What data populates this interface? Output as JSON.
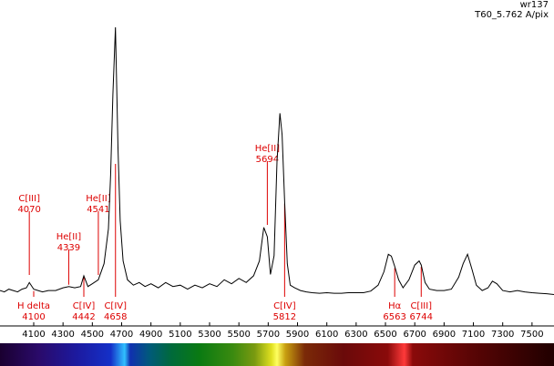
{
  "header": {
    "object": "wr137",
    "setup": "T60_5.762 A/pix"
  },
  "colors": {
    "spectrum_line": "#000000",
    "annotation": "#dd0000",
    "axis": "#000000",
    "background": "#ffffff"
  },
  "chart_data": {
    "type": "line",
    "title": "",
    "xlabel": "",
    "ylabel": "",
    "xlim": [
      3870,
      7650
    ],
    "ylim": [
      0,
      1
    ],
    "grid": false,
    "x_ticks": [
      4100,
      4300,
      4500,
      4700,
      4900,
      5100,
      5300,
      5500,
      5700,
      5900,
      6100,
      6300,
      6500,
      6700,
      6900,
      7100,
      7300,
      7500
    ],
    "series": [
      {
        "x": [
          3870,
          3900,
          3930,
          3960,
          3990,
          4020,
          4050,
          4070,
          4100,
          4130,
          4160,
          4200,
          4250,
          4300,
          4340,
          4380,
          4420,
          4442,
          4470,
          4500,
          4541,
          4580,
          4610,
          4625,
          4640,
          4658,
          4675,
          4690,
          4710,
          4740,
          4780,
          4820,
          4860,
          4900,
          4950,
          5000,
          5050,
          5100,
          5150,
          5200,
          5250,
          5300,
          5350,
          5400,
          5450,
          5500,
          5550,
          5600,
          5640,
          5670,
          5694,
          5715,
          5740,
          5760,
          5780,
          5795,
          5812,
          5830,
          5850,
          5880,
          5920,
          5960,
          6000,
          6050,
          6100,
          6150,
          6200,
          6250,
          6300,
          6350,
          6400,
          6450,
          6490,
          6520,
          6540,
          6563,
          6590,
          6620,
          6660,
          6700,
          6730,
          6744,
          6770,
          6800,
          6850,
          6900,
          6950,
          7000,
          7030,
          7060,
          7090,
          7120,
          7160,
          7200,
          7230,
          7260,
          7300,
          7350,
          7400,
          7450,
          7500,
          7550,
          7600,
          7650
        ],
        "y": [
          0.02,
          0.015,
          0.025,
          0.02,
          0.015,
          0.025,
          0.03,
          0.05,
          0.025,
          0.02,
          0.015,
          0.02,
          0.02,
          0.03,
          0.035,
          0.03,
          0.035,
          0.075,
          0.035,
          0.045,
          0.06,
          0.12,
          0.25,
          0.45,
          0.75,
          1.0,
          0.55,
          0.28,
          0.13,
          0.06,
          0.04,
          0.05,
          0.035,
          0.045,
          0.03,
          0.05,
          0.035,
          0.04,
          0.025,
          0.04,
          0.03,
          0.045,
          0.035,
          0.06,
          0.045,
          0.065,
          0.05,
          0.075,
          0.13,
          0.255,
          0.22,
          0.08,
          0.15,
          0.5,
          0.68,
          0.6,
          0.35,
          0.12,
          0.04,
          0.03,
          0.02,
          0.015,
          0.012,
          0.01,
          0.012,
          0.01,
          0.01,
          0.012,
          0.012,
          0.012,
          0.018,
          0.04,
          0.09,
          0.155,
          0.148,
          0.11,
          0.06,
          0.03,
          0.06,
          0.115,
          0.13,
          0.115,
          0.05,
          0.025,
          0.02,
          0.02,
          0.025,
          0.07,
          0.12,
          0.155,
          0.1,
          0.04,
          0.02,
          0.03,
          0.055,
          0.045,
          0.02,
          0.015,
          0.02,
          0.015,
          0.012,
          0.01,
          0.008,
          0.005
        ]
      }
    ],
    "annotations": [
      {
        "label_lines": [
          "C[III]",
          "4070"
        ],
        "x": 4070,
        "position": "above"
      },
      {
        "label_lines": [
          "H delta",
          "4100"
        ],
        "x": 4100,
        "position": "below"
      },
      {
        "label_lines": [
          "He[II]",
          "4339"
        ],
        "x": 4339,
        "position": "above"
      },
      {
        "label_lines": [
          "C[IV]",
          "4442"
        ],
        "x": 4442,
        "position": "below"
      },
      {
        "label_lines": [
          "He[II]",
          "4541"
        ],
        "x": 4541,
        "position": "above"
      },
      {
        "label_lines": [
          "C[IV]",
          "4658"
        ],
        "x": 4658,
        "position": "below"
      },
      {
        "label_lines": [
          "He[II]",
          "5694"
        ],
        "x": 5694,
        "position": "above"
      },
      {
        "label_lines": [
          "C[IV]",
          "5812"
        ],
        "x": 5812,
        "position": "below"
      },
      {
        "label_lines": [
          "Hα",
          "6563"
        ],
        "x": 6563,
        "position": "below"
      },
      {
        "label_lines": [
          "C[III]",
          "6744"
        ],
        "x": 6744,
        "position": "below"
      }
    ]
  }
}
